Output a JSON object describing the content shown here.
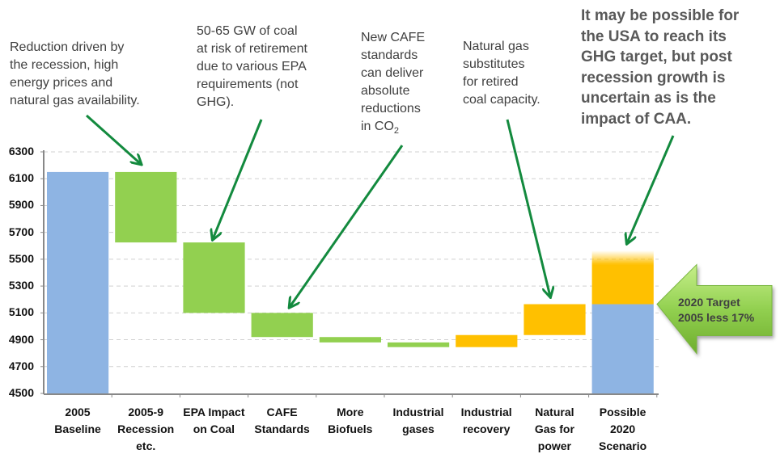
{
  "chart_data": {
    "type": "waterfall",
    "ylim": [
      4500,
      6300
    ],
    "yticks": [
      4500,
      4700,
      4900,
      5100,
      5300,
      5500,
      5700,
      5900,
      6100,
      6300
    ],
    "grid": "horizontal-dashed",
    "categories": [
      "2005\nBaseline",
      "2005-9\nRecession\netc.",
      "EPA Impact\non Coal",
      "CAFE\nStandards",
      "More\nBiofuels",
      "Industrial\ngases",
      "Industrial\nrecovery",
      "Natural\nGas for\npower",
      "Possible\n2020\nScenario"
    ],
    "bars": [
      {
        "kind": "total",
        "from": 4500,
        "to": 6150,
        "color": "#8eb4e3"
      },
      {
        "kind": "decrease",
        "from": 6150,
        "to": 5625,
        "color": "#92d050"
      },
      {
        "kind": "decrease",
        "from": 5625,
        "to": 5100,
        "color": "#92d050"
      },
      {
        "kind": "decrease",
        "from": 5100,
        "to": 4920,
        "color": "#92d050"
      },
      {
        "kind": "decrease",
        "from": 4920,
        "to": 4880,
        "color": "#92d050"
      },
      {
        "kind": "decrease",
        "from": 4880,
        "to": 4845,
        "color": "#92d050"
      },
      {
        "kind": "increase",
        "from": 4845,
        "to": 4935,
        "color": "#ffc000"
      },
      {
        "kind": "increase",
        "from": 4935,
        "to": 5165,
        "color": "#ffc000"
      },
      {
        "kind": "stacked",
        "from": 4500,
        "to": 5165,
        "color": "#8eb4e3",
        "upper_from": 5165,
        "upper_to": 5460,
        "upper_fade_to": 5565,
        "upper_color": "#ffc000"
      }
    ],
    "annotations": [
      {
        "text": "Reduction driven by\nthe recession, high\nenergy prices and\nnatural gas availability.",
        "target_category": 1
      },
      {
        "text": "50-65 GW of coal\nat risk of retirement\ndue to various EPA\nrequirements (not\nGHG).",
        "target_category": 2
      },
      {
        "text": "New CAFE\nstandards\ncan deliver\nabsolute\nreductions\nin CO",
        "subscript": "2",
        "target_category": 3
      },
      {
        "text": "Natural gas\nsubstitutes\nfor retired\ncoal capacity.",
        "target_category": 7
      },
      {
        "text": "It may be possible for\nthe USA to reach its\nGHG target, but post\nrecession growth is\nuncertain as is the\nimpact of CAA.",
        "target_category": 8,
        "bold": true
      }
    ],
    "target_callout": {
      "text": "2020 Target\n2005 less 17%",
      "value": 5165,
      "color": "#92d050"
    },
    "arrow_color": "#138a3e"
  }
}
